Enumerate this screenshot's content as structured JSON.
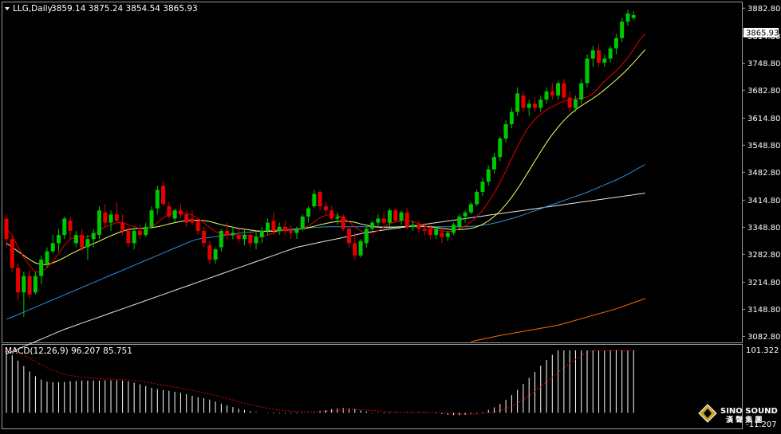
{
  "chart_data": {
    "type": "candlestick",
    "main": {
      "symbol_label": "LLG,Daily",
      "ohlc_readout": "3859.14 3875.24 3854.54 3865.93",
      "current_price_label": "3865.93",
      "y_range": [
        3070,
        3895
      ],
      "y_ticks": [
        "3882.80",
        "3814.80",
        "3748.80",
        "3682.80",
        "3614.80",
        "3548.80",
        "3482.80",
        "3414.80",
        "3348.80",
        "3282.80",
        "3214.80",
        "3148.80",
        "3082.80"
      ],
      "candles": [
        [
          3370,
          3380,
          3300,
          3320
        ],
        [
          3320,
          3330,
          3240,
          3250
        ],
        [
          3250,
          3260,
          3170,
          3190
        ],
        [
          3190,
          3240,
          3130,
          3230
        ],
        [
          3230,
          3245,
          3175,
          3185
        ],
        [
          3190,
          3240,
          3185,
          3230
        ],
        [
          3230,
          3280,
          3210,
          3270
        ],
        [
          3260,
          3300,
          3250,
          3290
        ],
        [
          3290,
          3330,
          3285,
          3310
        ],
        [
          3310,
          3345,
          3290,
          3330
        ],
        [
          3330,
          3375,
          3320,
          3370
        ],
        [
          3365,
          3375,
          3320,
          3340
        ],
        [
          3310,
          3340,
          3300,
          3330
        ],
        [
          3330,
          3345,
          3290,
          3300
        ],
        [
          3300,
          3330,
          3270,
          3320
        ],
        [
          3320,
          3345,
          3300,
          3335
        ],
        [
          3330,
          3400,
          3320,
          3390
        ],
        [
          3385,
          3405,
          3350,
          3360
        ],
        [
          3360,
          3390,
          3340,
          3380
        ],
        [
          3380,
          3410,
          3360,
          3365
        ],
        [
          3360,
          3380,
          3330,
          3340
        ],
        [
          3340,
          3350,
          3300,
          3310
        ],
        [
          3310,
          3345,
          3295,
          3340
        ],
        [
          3340,
          3355,
          3320,
          3330
        ],
        [
          3330,
          3360,
          3325,
          3350
        ],
        [
          3350,
          3400,
          3345,
          3390
        ],
        [
          3395,
          3450,
          3380,
          3440
        ],
        [
          3450,
          3460,
          3400,
          3405
        ],
        [
          3400,
          3410,
          3370,
          3375
        ],
        [
          3370,
          3395,
          3360,
          3390
        ],
        [
          3390,
          3405,
          3370,
          3380
        ],
        [
          3380,
          3390,
          3350,
          3360
        ],
        [
          3370,
          3390,
          3355,
          3360
        ],
        [
          3365,
          3370,
          3330,
          3340
        ],
        [
          3340,
          3350,
          3300,
          3310
        ],
        [
          3305,
          3315,
          3260,
          3270
        ],
        [
          3270,
          3300,
          3260,
          3295
        ],
        [
          3300,
          3345,
          3290,
          3340
        ],
        [
          3340,
          3360,
          3320,
          3330
        ],
        [
          3330,
          3350,
          3320,
          3335
        ],
        [
          3330,
          3345,
          3310,
          3320
        ],
        [
          3320,
          3345,
          3305,
          3330
        ],
        [
          3330,
          3340,
          3300,
          3310
        ],
        [
          3310,
          3335,
          3295,
          3325
        ],
        [
          3325,
          3350,
          3310,
          3340
        ],
        [
          3340,
          3370,
          3330,
          3360
        ],
        [
          3365,
          3385,
          3330,
          3340
        ],
        [
          3340,
          3360,
          3330,
          3350
        ],
        [
          3350,
          3365,
          3330,
          3340
        ],
        [
          3340,
          3355,
          3320,
          3335
        ],
        [
          3335,
          3350,
          3320,
          3345
        ],
        [
          3345,
          3380,
          3340,
          3375
        ],
        [
          3375,
          3400,
          3360,
          3395
        ],
        [
          3400,
          3440,
          3395,
          3430
        ],
        [
          3435,
          3440,
          3390,
          3400
        ],
        [
          3400,
          3410,
          3380,
          3390
        ],
        [
          3390,
          3400,
          3365,
          3370
        ],
        [
          3370,
          3385,
          3355,
          3375
        ],
        [
          3375,
          3380,
          3340,
          3345
        ],
        [
          3345,
          3350,
          3300,
          3310
        ],
        [
          3310,
          3335,
          3270,
          3280
        ],
        [
          3280,
          3320,
          3275,
          3315
        ],
        [
          3310,
          3350,
          3300,
          3345
        ],
        [
          3345,
          3365,
          3340,
          3360
        ],
        [
          3360,
          3380,
          3350,
          3370
        ],
        [
          3370,
          3385,
          3355,
          3360
        ],
        [
          3360,
          3395,
          3350,
          3390
        ],
        [
          3390,
          3395,
          3360,
          3365
        ],
        [
          3365,
          3390,
          3355,
          3385
        ],
        [
          3385,
          3395,
          3345,
          3350
        ],
        [
          3350,
          3365,
          3340,
          3355
        ],
        [
          3355,
          3365,
          3335,
          3345
        ],
        [
          3345,
          3360,
          3330,
          3340
        ],
        [
          3345,
          3355,
          3320,
          3330
        ],
        [
          3330,
          3350,
          3320,
          3345
        ],
        [
          3335,
          3350,
          3310,
          3325
        ],
        [
          3325,
          3340,
          3315,
          3335
        ],
        [
          3335,
          3360,
          3330,
          3355
        ],
        [
          3350,
          3380,
          3345,
          3375
        ],
        [
          3375,
          3390,
          3360,
          3385
        ],
        [
          3385,
          3410,
          3380,
          3405
        ],
        [
          3405,
          3440,
          3400,
          3435
        ],
        [
          3435,
          3470,
          3425,
          3460
        ],
        [
          3460,
          3500,
          3450,
          3490
        ],
        [
          3490,
          3530,
          3480,
          3520
        ],
        [
          3520,
          3570,
          3510,
          3565
        ],
        [
          3565,
          3610,
          3555,
          3600
        ],
        [
          3600,
          3640,
          3590,
          3630
        ],
        [
          3630,
          3690,
          3620,
          3675
        ],
        [
          3670,
          3680,
          3630,
          3640
        ],
        [
          3640,
          3660,
          3620,
          3650
        ],
        [
          3650,
          3665,
          3630,
          3640
        ],
        [
          3640,
          3670,
          3630,
          3660
        ],
        [
          3660,
          3690,
          3650,
          3680
        ],
        [
          3680,
          3700,
          3660,
          3670
        ],
        [
          3670,
          3705,
          3660,
          3700
        ],
        [
          3700,
          3710,
          3660,
          3665
        ],
        [
          3665,
          3680,
          3630,
          3640
        ],
        [
          3640,
          3670,
          3630,
          3660
        ],
        [
          3660,
          3710,
          3650,
          3700
        ],
        [
          3700,
          3770,
          3690,
          3760
        ],
        [
          3760,
          3790,
          3740,
          3780
        ],
        [
          3780,
          3795,
          3740,
          3750
        ],
        [
          3750,
          3770,
          3740,
          3760
        ],
        [
          3760,
          3790,
          3750,
          3785
        ],
        [
          3785,
          3820,
          3770,
          3810
        ],
        [
          3810,
          3860,
          3800,
          3850
        ],
        [
          3850,
          3880,
          3840,
          3870
        ],
        [
          3859.14,
          3875.24,
          3854.54,
          3865.93
        ]
      ],
      "ma_red": [
        3345,
        3330,
        3300,
        3275,
        3255,
        3240,
        3240,
        3250,
        3265,
        3285,
        3305,
        3320,
        3325,
        3325,
        3325,
        3330,
        3340,
        3350,
        3355,
        3360,
        3360,
        3355,
        3350,
        3345,
        3345,
        3350,
        3360,
        3372,
        3380,
        3385,
        3385,
        3382,
        3378,
        3370,
        3360,
        3348,
        3338,
        3333,
        3330,
        3330,
        3330,
        3330,
        3328,
        3325,
        3325,
        3330,
        3335,
        3340,
        3342,
        3342,
        3342,
        3345,
        3352,
        3362,
        3372,
        3378,
        3380,
        3378,
        3372,
        3362,
        3350,
        3340,
        3335,
        3335,
        3340,
        3350,
        3358,
        3362,
        3365,
        3365,
        3362,
        3358,
        3352,
        3347,
        3343,
        3340,
        3338,
        3340,
        3345,
        3352,
        3362,
        3375,
        3390,
        3410,
        3432,
        3458,
        3486,
        3516,
        3545,
        3572,
        3595,
        3612,
        3625,
        3635,
        3643,
        3650,
        3656,
        3660,
        3662,
        3664,
        3666,
        3675,
        3690,
        3705,
        3718,
        3730,
        3745,
        3762,
        3782,
        3805,
        3820
      ],
      "ma_yellow": [
        3310,
        3300,
        3290,
        3280,
        3270,
        3262,
        3258,
        3258,
        3262,
        3268,
        3275,
        3283,
        3290,
        3297,
        3303,
        3309,
        3315,
        3322,
        3328,
        3334,
        3339,
        3343,
        3345,
        3346,
        3347,
        3348,
        3350,
        3353,
        3357,
        3360,
        3363,
        3365,
        3366,
        3366,
        3365,
        3363,
        3359,
        3355,
        3352,
        3349,
        3346,
        3344,
        3342,
        3340,
        3339,
        3339,
        3339,
        3340,
        3341,
        3342,
        3343,
        3345,
        3348,
        3351,
        3355,
        3358,
        3361,
        3363,
        3364,
        3363,
        3361,
        3357,
        3354,
        3351,
        3349,
        3348,
        3348,
        3349,
        3350,
        3351,
        3352,
        3352,
        3351,
        3350,
        3348,
        3346,
        3344,
        3343,
        3343,
        3344,
        3346,
        3350,
        3356,
        3364,
        3375,
        3388,
        3404,
        3422,
        3442,
        3464,
        3487,
        3510,
        3533,
        3555,
        3575,
        3593,
        3609,
        3623,
        3635,
        3645,
        3654,
        3663,
        3673,
        3684,
        3696,
        3708,
        3721,
        3735,
        3750,
        3766,
        3782
      ],
      "ma_blue": [
        3125,
        3130,
        3136,
        3142,
        3148,
        3154,
        3160,
        3166,
        3172,
        3178,
        3184,
        3190,
        3196,
        3202,
        3208,
        3214,
        3220,
        3226,
        3232,
        3238,
        3244,
        3250,
        3256,
        3262,
        3268,
        3274,
        3280,
        3286,
        3292,
        3298,
        3304,
        3310,
        3316,
        3320,
        3322,
        3324,
        3326,
        3328,
        3330,
        3332,
        3334,
        3336,
        3337,
        3338,
        3339,
        3340,
        3341,
        3342,
        3343,
        3344,
        3345,
        3346,
        3347,
        3348,
        3349,
        3350,
        3350,
        3350,
        3350,
        3350,
        3350,
        3350,
        3350,
        3350,
        3350,
        3350,
        3350,
        3350,
        3350,
        3350,
        3350,
        3350,
        3350,
        3350,
        3350,
        3350,
        3350,
        3350,
        3350,
        3350,
        3351,
        3352,
        3354,
        3356,
        3359,
        3362,
        3366,
        3370,
        3374,
        3379,
        3384,
        3389,
        3394,
        3399,
        3404,
        3409,
        3414,
        3419,
        3424,
        3429,
        3434,
        3440,
        3446,
        3452,
        3458,
        3464,
        3471,
        3478,
        3486,
        3494,
        3502
      ],
      "ma_white": [
        3040,
        3046,
        3052,
        3058,
        3064,
        3070,
        3076,
        3082,
        3088,
        3094,
        3100,
        3105,
        3110,
        3115,
        3120,
        3125,
        3130,
        3135,
        3140,
        3145,
        3150,
        3155,
        3160,
        3165,
        3170,
        3175,
        3180,
        3185,
        3190,
        3195,
        3200,
        3205,
        3210,
        3215,
        3220,
        3225,
        3230,
        3235,
        3240,
        3245,
        3250,
        3255,
        3260,
        3265,
        3270,
        3275,
        3280,
        3285,
        3290,
        3295,
        3300,
        3303,
        3306,
        3309,
        3312,
        3315,
        3318,
        3321,
        3324,
        3327,
        3330,
        3333,
        3336,
        3338,
        3340,
        3342,
        3344,
        3346,
        3348,
        3350,
        3352,
        3354,
        3356,
        3358,
        3360,
        3362,
        3364,
        3366,
        3368,
        3370,
        3372,
        3374,
        3376,
        3378,
        3380,
        3382,
        3384,
        3386,
        3388,
        3390,
        3392,
        3394,
        3396,
        3398,
        3400,
        3402,
        3404,
        3406,
        3408,
        3410,
        3412,
        3414,
        3416,
        3418,
        3420,
        3422,
        3424,
        3426,
        3428,
        3430,
        3432
      ],
      "ma_orange_points": [
        [
          80,
          3070
        ],
        [
          85,
          3085
        ],
        [
          95,
          3110
        ],
        [
          105,
          3150
        ],
        [
          110,
          3175
        ]
      ]
    },
    "macd": {
      "label": "MACD(12,26,9) 96.207 85.751",
      "y_top_label": "101.322",
      "y_bottom_label": "-11.207",
      "y_range": [
        -11.207,
        101.322
      ]
    }
  },
  "logo": {
    "brand_line1": "SINO SOUND",
    "brand_line2": "漢 聲 集 團"
  },
  "colors": {
    "bull": "#00c800",
    "bear": "#e60000",
    "ma_red": "#e60000",
    "ma_yellow": "#ffff64",
    "ma_blue": "#2b8fe0",
    "ma_white": "#e6e6e6",
    "ma_orange": "#ff6a00",
    "macd_signal": "#e60000"
  }
}
